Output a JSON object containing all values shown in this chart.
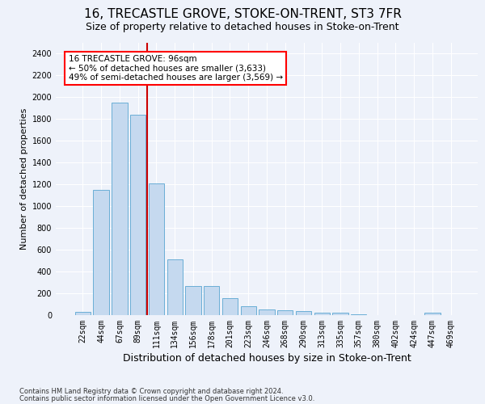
{
  "title": "16, TRECASTLE GROVE, STOKE-ON-TRENT, ST3 7FR",
  "subtitle": "Size of property relative to detached houses in Stoke-on-Trent",
  "xlabel": "Distribution of detached houses by size in Stoke-on-Trent",
  "ylabel": "Number of detached properties",
  "footer1": "Contains HM Land Registry data © Crown copyright and database right 2024.",
  "footer2": "Contains public sector information licensed under the Open Government Licence v3.0.",
  "bar_labels": [
    "22sqm",
    "44sqm",
    "67sqm",
    "89sqm",
    "111sqm",
    "134sqm",
    "156sqm",
    "178sqm",
    "201sqm",
    "223sqm",
    "246sqm",
    "268sqm",
    "290sqm",
    "313sqm",
    "335sqm",
    "357sqm",
    "380sqm",
    "402sqm",
    "424sqm",
    "447sqm",
    "469sqm"
  ],
  "bar_values": [
    30,
    1150,
    1950,
    1840,
    1210,
    510,
    265,
    265,
    155,
    80,
    50,
    45,
    40,
    20,
    20,
    10,
    0,
    0,
    0,
    20,
    0
  ],
  "bar_color": "#c5d9ef",
  "bar_edge_color": "#6aaed6",
  "ylim": [
    0,
    2500
  ],
  "yticks": [
    0,
    200,
    400,
    600,
    800,
    1000,
    1200,
    1400,
    1600,
    1800,
    2000,
    2200,
    2400
  ],
  "vline_x": 3.5,
  "vline_color": "#cc0000",
  "annotation_text": "16 TRECASTLE GROVE: 96sqm\n← 50% of detached houses are smaller (3,633)\n49% of semi-detached houses are larger (3,569) →",
  "background_color": "#eef2fa",
  "grid_color": "#ffffff",
  "title_fontsize": 11,
  "subtitle_fontsize": 9,
  "ylabel_fontsize": 8,
  "xlabel_fontsize": 9,
  "tick_fontsize": 7,
  "footer_fontsize": 6,
  "annotation_fontsize": 7.5
}
